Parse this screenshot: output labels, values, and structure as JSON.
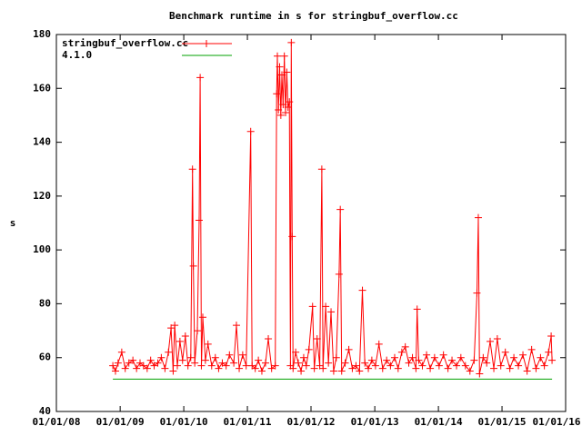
{
  "chart_data": {
    "type": "line",
    "title": "Benchmark runtime in s for stringbuf_overflow.cc",
    "y_label": "s",
    "xlim": [
      "2008-01-01",
      "2016-01-01"
    ],
    "xticks": [
      {
        "value": "2008-01-01",
        "label": "01/01/08"
      },
      {
        "value": "2009-01-01",
        "label": "01/01/09"
      },
      {
        "value": "2010-01-01",
        "label": "01/01/10"
      },
      {
        "value": "2011-01-01",
        "label": "01/01/11"
      },
      {
        "value": "2012-01-01",
        "label": "01/01/12"
      },
      {
        "value": "2013-01-01",
        "label": "01/01/13"
      },
      {
        "value": "2014-01-01",
        "label": "01/01/14"
      },
      {
        "value": "2015-01-01",
        "label": "01/01/15"
      },
      {
        "value": "2016-01-01",
        "label": "01/01/16"
      }
    ],
    "ylim": [
      40,
      180
    ],
    "yticks": [
      40,
      60,
      80,
      100,
      120,
      140,
      160,
      180
    ],
    "grid": false,
    "legend": "top-left",
    "series": [
      {
        "name": "stringbuf_overflow.cc",
        "color": "#ff0000",
        "markers": true,
        "x": [
          "2008-11-20",
          "2008-12-05",
          "2008-12-20",
          "2009-01-10",
          "2009-01-30",
          "2009-02-20",
          "2009-03-15",
          "2009-04-05",
          "2009-04-25",
          "2009-05-15",
          "2009-06-05",
          "2009-06-25",
          "2009-07-15",
          "2009-08-05",
          "2009-08-25",
          "2009-09-15",
          "2009-10-05",
          "2009-10-20",
          "2009-11-01",
          "2009-11-10",
          "2009-11-25",
          "2009-12-10",
          "2009-12-25",
          "2010-01-10",
          "2010-01-25",
          "2010-02-10",
          "2010-02-20",
          "2010-02-25",
          "2010-03-05",
          "2010-03-20",
          "2010-03-30",
          "2010-04-05",
          "2010-04-12",
          "2010-04-20",
          "2010-05-05",
          "2010-05-20",
          "2010-06-10",
          "2010-07-01",
          "2010-07-20",
          "2010-08-10",
          "2010-09-01",
          "2010-09-20",
          "2010-10-15",
          "2010-10-30",
          "2010-11-15",
          "2010-12-05",
          "2010-12-25",
          "2011-01-20",
          "2011-01-28",
          "2011-02-15",
          "2011-03-05",
          "2011-03-25",
          "2011-04-15",
          "2011-05-01",
          "2011-05-20",
          "2011-06-10",
          "2011-06-18",
          "2011-06-22",
          "2011-06-28",
          "2011-07-05",
          "2011-07-12",
          "2011-07-18",
          "2011-07-25",
          "2011-08-01",
          "2011-08-08",
          "2011-08-15",
          "2011-08-22",
          "2011-08-30",
          "2011-09-05",
          "2011-09-10",
          "2011-09-15",
          "2011-09-20",
          "2011-10-05",
          "2011-10-20",
          "2011-11-05",
          "2011-11-20",
          "2011-12-05",
          "2011-12-20",
          "2012-01-10",
          "2012-01-20",
          "2012-02-05",
          "2012-02-20",
          "2012-03-03",
          "2012-03-10",
          "2012-03-25",
          "2012-04-10",
          "2012-04-25",
          "2012-05-10",
          "2012-05-25",
          "2012-06-10",
          "2012-06-17",
          "2012-06-25",
          "2012-07-15",
          "2012-08-05",
          "2012-08-25",
          "2012-09-15",
          "2012-10-05",
          "2012-10-22",
          "2012-11-05",
          "2012-11-25",
          "2012-12-15",
          "2013-01-05",
          "2013-01-25",
          "2013-02-15",
          "2013-03-10",
          "2013-04-01",
          "2013-04-25",
          "2013-05-15",
          "2013-06-05",
          "2013-06-25",
          "2013-07-15",
          "2013-08-05",
          "2013-08-25",
          "2013-09-01",
          "2013-09-10",
          "2013-10-01",
          "2013-10-25",
          "2013-11-15",
          "2013-12-10",
          "2014-01-05",
          "2014-01-30",
          "2014-02-25",
          "2014-03-20",
          "2014-04-15",
          "2014-05-10",
          "2014-06-05",
          "2014-07-01",
          "2014-07-25",
          "2014-08-10",
          "2014-08-18",
          "2014-08-25",
          "2014-09-15",
          "2014-10-05",
          "2014-10-25",
          "2014-11-15",
          "2014-12-05",
          "2014-12-25",
          "2015-01-20",
          "2015-02-15",
          "2015-03-10",
          "2015-04-05",
          "2015-05-01",
          "2015-05-25",
          "2015-06-20",
          "2015-07-15",
          "2015-08-10",
          "2015-09-01",
          "2015-09-25",
          "2015-10-10",
          "2015-10-15"
        ],
        "values": [
          57,
          55,
          58,
          62,
          56,
          58,
          59,
          56,
          58,
          57,
          56,
          59,
          57,
          58,
          60,
          56,
          62,
          71,
          55,
          72,
          57,
          66,
          59,
          68,
          57,
          60,
          130,
          94,
          58,
          70,
          111,
          164,
          57,
          75,
          59,
          65,
          57,
          60,
          56,
          58,
          57,
          61,
          58,
          72,
          56,
          61,
          57,
          144,
          57,
          56,
          59,
          55,
          58,
          67,
          56,
          57,
          158,
          172,
          152,
          168,
          150,
          165,
          154,
          172,
          151,
          166,
          153,
          155,
          57,
          177,
          105,
          56,
          62,
          58,
          55,
          60,
          57,
          63,
          79,
          56,
          67,
          57,
          130,
          56,
          79,
          58,
          77,
          55,
          60,
          91,
          115,
          55,
          58,
          63,
          56,
          57,
          55,
          85,
          58,
          56,
          59,
          57,
          65,
          56,
          59,
          57,
          60,
          56,
          62,
          64,
          58,
          60,
          56,
          78,
          59,
          57,
          61,
          56,
          60,
          57,
          61,
          56,
          59,
          57,
          60,
          57,
          55,
          59,
          84,
          112,
          54,
          60,
          58,
          66,
          56,
          67,
          57,
          62,
          56,
          60,
          57,
          61,
          55,
          63,
          56,
          60,
          57,
          62,
          68,
          59
        ]
      },
      {
        "name": "4.1.0",
        "color": "#00a000",
        "markers": false,
        "x": [
          "2008-11-20",
          "2015-10-15"
        ],
        "values": [
          52,
          52
        ]
      }
    ]
  }
}
